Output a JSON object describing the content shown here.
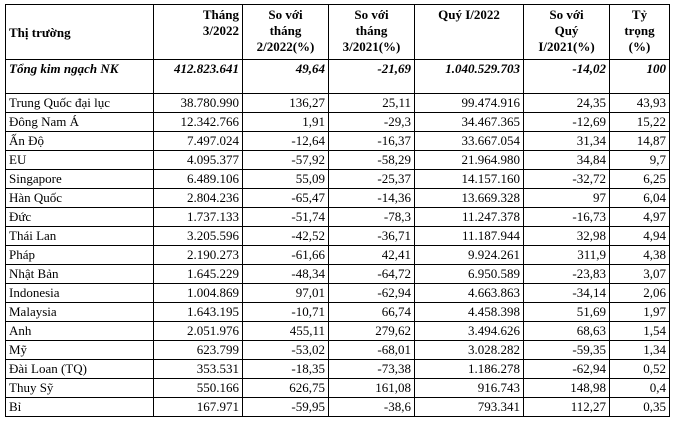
{
  "headers": [
    [
      "Thị trường"
    ],
    [
      "Tháng",
      "3/2022"
    ],
    [
      "So với",
      "tháng",
      "2/2022(%)"
    ],
    [
      "So với",
      "tháng",
      "3/2021(%)"
    ],
    [
      "Quý I/2022"
    ],
    [
      "So với",
      "Quý",
      "I/2021(%)"
    ],
    [
      "Tỷ",
      "trọng",
      "(%)"
    ]
  ],
  "total": [
    "Tổng kim ngạch NK",
    "412.823.641",
    "49,64",
    "-21,69",
    "1.040.529.703",
    "-14,02",
    "100"
  ],
  "rows": [
    [
      "Trung Quốc đại lục",
      "38.780.990",
      "136,27",
      "25,11",
      "99.474.916",
      "24,35",
      "43,93"
    ],
    [
      "Đông Nam Á",
      "12.342.766",
      "1,91",
      "-29,3",
      "34.467.365",
      "-12,69",
      "15,22"
    ],
    [
      "Ấn Độ",
      "7.497.024",
      "-12,64",
      "-16,37",
      "33.667.054",
      "31,34",
      "14,87"
    ],
    [
      "EU",
      "4.095.377",
      "-57,92",
      "-58,29",
      "21.964.980",
      "34,84",
      "9,7"
    ],
    [
      "Singapore",
      "6.489.106",
      "55,09",
      "-25,37",
      "14.157.160",
      "-32,72",
      "6,25"
    ],
    [
      "Hàn Quốc",
      "2.804.236",
      "-65,47",
      "-14,36",
      "13.669.328",
      "97",
      "6,04"
    ],
    [
      "Đức",
      "1.737.133",
      "-51,74",
      "-78,3",
      "11.247.378",
      "-16,73",
      "4,97"
    ],
    [
      "Thái Lan",
      "3.205.596",
      "-42,52",
      "-36,71",
      "11.187.944",
      "32,98",
      "4,94"
    ],
    [
      "Pháp",
      "2.190.273",
      "-61,66",
      "42,41",
      "9.924.261",
      "311,9",
      "4,38"
    ],
    [
      "Nhật Bản",
      "1.645.229",
      "-48,34",
      "-64,72",
      "6.950.589",
      "-23,83",
      "3,07"
    ],
    [
      "Indonesia",
      "1.004.869",
      "97,01",
      "-62,94",
      "4.663.863",
      "-34,14",
      "2,06"
    ],
    [
      "Malaysia",
      "1.643.195",
      "-10,71",
      "66,74",
      "4.458.398",
      "51,69",
      "1,97"
    ],
    [
      "Anh",
      "2.051.976",
      "455,11",
      "279,62",
      "3.494.626",
      "68,63",
      "1,54"
    ],
    [
      "Mỹ",
      "623.799",
      "-53,02",
      "-68,01",
      "3.028.282",
      "-59,35",
      "1,34"
    ],
    [
      "Đài Loan (TQ)",
      "353.531",
      "-18,35",
      "-73,38",
      "1.186.278",
      "-62,94",
      "0,52"
    ],
    [
      "Thuy Sỹ",
      "550.166",
      "626,75",
      "161,08",
      "916.743",
      "148,98",
      "0,4"
    ],
    [
      "Bỉ",
      "167.971",
      "-59,95",
      "-38,6",
      "793.341",
      "112,27",
      "0,35"
    ]
  ]
}
